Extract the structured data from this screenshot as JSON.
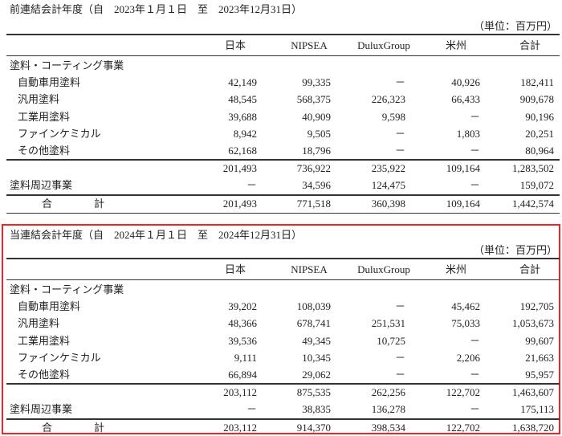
{
  "columns": [
    "日本",
    "NIPSEA",
    "DuluxGroup",
    "米州",
    "合計"
  ],
  "highlight_color": "#e8262b",
  "tables": [
    {
      "title": "前連結会計年度（自　2023年１月１日　至　2023年12月31日）",
      "unit": "（単位：百万円）",
      "segment_label": "塗料・コーティング事業",
      "rows": [
        {
          "label": "自動車用塗料",
          "values": [
            "42,149",
            "99,335",
            "－",
            "40,926",
            "182,411"
          ]
        },
        {
          "label": "汎用塗料",
          "values": [
            "48,545",
            "568,375",
            "226,323",
            "66,433",
            "909,678"
          ]
        },
        {
          "label": "工業用塗料",
          "values": [
            "39,688",
            "40,909",
            "9,598",
            "－",
            "90,196"
          ]
        },
        {
          "label": "ファインケミカル",
          "values": [
            "8,942",
            "9,505",
            "－",
            "1,803",
            "20,251"
          ]
        },
        {
          "label": "その他塗料",
          "values": [
            "62,168",
            "18,796",
            "－",
            "－",
            "80,964"
          ]
        }
      ],
      "subtotal": [
        "201,493",
        "736,922",
        "235,922",
        "109,164",
        "1,283,502"
      ],
      "peripheral": {
        "label": "塗料周辺事業",
        "values": [
          "－",
          "34,596",
          "124,475",
          "－",
          "159,072"
        ]
      },
      "total": {
        "label": "合　　　　計",
        "values": [
          "201,493",
          "771,518",
          "360,398",
          "109,164",
          "1,442,574"
        ]
      }
    },
    {
      "title": "当連結会計年度（自　2024年１月１日　至　2024年12月31日）",
      "unit": "（単位：百万円）",
      "segment_label": "塗料・コーティング事業",
      "rows": [
        {
          "label": "自動車用塗料",
          "values": [
            "39,202",
            "108,039",
            "－",
            "45,462",
            "192,705"
          ]
        },
        {
          "label": "汎用塗料",
          "values": [
            "48,366",
            "678,741",
            "251,531",
            "75,033",
            "1,053,673"
          ]
        },
        {
          "label": "工業用塗料",
          "values": [
            "39,536",
            "49,345",
            "10,725",
            "－",
            "99,607"
          ]
        },
        {
          "label": "ファインケミカル",
          "values": [
            "9,111",
            "10,345",
            "－",
            "2,206",
            "21,663"
          ]
        },
        {
          "label": "その他塗料",
          "values": [
            "66,894",
            "29,062",
            "－",
            "－",
            "95,957"
          ]
        }
      ],
      "subtotal": [
        "203,112",
        "875,535",
        "262,256",
        "122,702",
        "1,463,607"
      ],
      "peripheral": {
        "label": "塗料周辺事業",
        "values": [
          "－",
          "38,835",
          "136,278",
          "－",
          "175,113"
        ]
      },
      "total": {
        "label": "合　　　　計",
        "values": [
          "203,112",
          "914,370",
          "398,534",
          "122,702",
          "1,638,720"
        ]
      }
    }
  ]
}
